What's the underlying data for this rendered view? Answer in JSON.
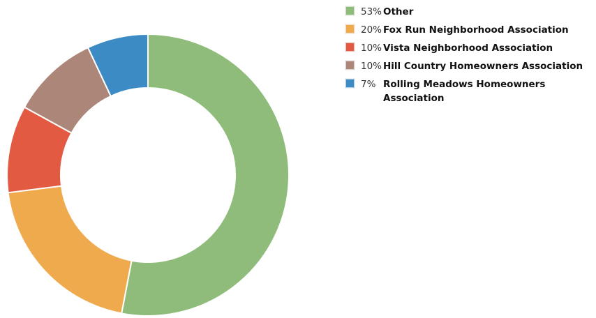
{
  "chart_data": {
    "type": "pie",
    "donut": true,
    "legend_position": "top-right",
    "slices": [
      {
        "label": "Other",
        "pct_label": "53%",
        "value": 53,
        "color": "#8fbc7a"
      },
      {
        "label": "Fox Run Neighborhood Association",
        "pct_label": "20%",
        "value": 20,
        "color": "#f0aa4e"
      },
      {
        "label": "Vista Neighborhood Association",
        "pct_label": "10%",
        "value": 10,
        "color": "#e35a43"
      },
      {
        "label": "Hill Country Homeowners Association",
        "pct_label": "10%",
        "value": 10,
        "color": "#ac8678"
      },
      {
        "label": "Rolling Meadows Homeowners Association",
        "pct_label": "7%",
        "value": 7,
        "color": "#3d8bc4"
      }
    ]
  }
}
